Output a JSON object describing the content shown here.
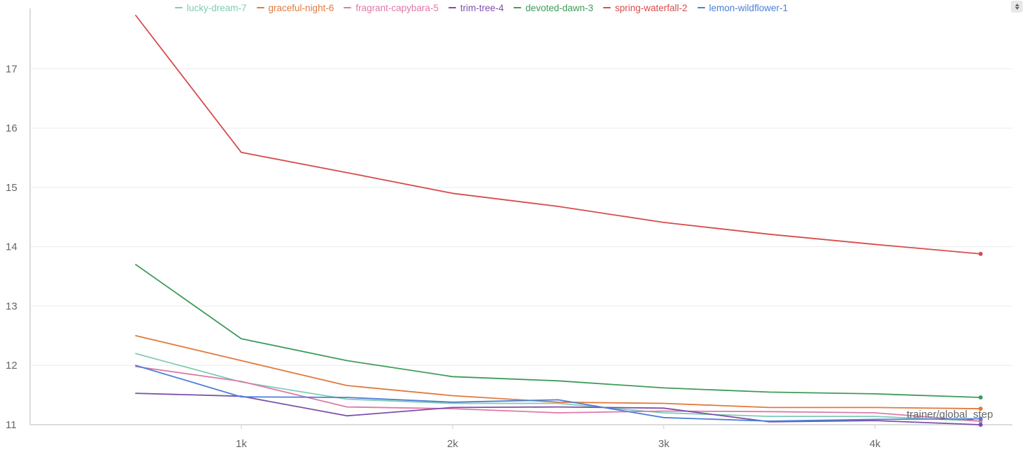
{
  "controls": {
    "scroll_icon": "updown-arrows-icon"
  },
  "chart_data": {
    "type": "line",
    "title": "",
    "xlabel": "trainer/global_step",
    "ylabel": "",
    "xlim": [
      0,
      4650
    ],
    "ylim": [
      11,
      17.9
    ],
    "x_ticks": [
      1000,
      2000,
      3000,
      4000
    ],
    "x_tick_labels": [
      "1k",
      "2k",
      "3k",
      "4k"
    ],
    "y_ticks": [
      11,
      12,
      13,
      14,
      15,
      16,
      17
    ],
    "y_tick_labels": [
      "11",
      "12",
      "13",
      "14",
      "15",
      "16",
      "17"
    ],
    "grid": true,
    "legend_position": "top",
    "series": [
      {
        "name": "lucky-dream-7",
        "color": "#7fccb5",
        "x": [
          500,
          1000,
          1500,
          2000,
          2500,
          3000,
          3500,
          4000,
          4500
        ],
        "y": [
          12.2,
          11.72,
          11.43,
          11.36,
          11.36,
          11.2,
          11.14,
          11.14,
          11.06
        ],
        "end_marker": false
      },
      {
        "name": "graceful-night-6",
        "color": "#e07a3e",
        "x": [
          500,
          1000,
          1500,
          2000,
          2500,
          3000,
          3500,
          4000,
          4500
        ],
        "y": [
          12.5,
          12.08,
          11.66,
          11.49,
          11.38,
          11.36,
          11.29,
          11.29,
          11.27
        ],
        "end_marker": true
      },
      {
        "name": "fragrant-capybara-5",
        "color": "#e079a8",
        "x": [
          500,
          1000,
          1500,
          2000,
          2500,
          3000,
          3500,
          4000,
          4500
        ],
        "y": [
          11.98,
          11.73,
          11.3,
          11.27,
          11.2,
          11.23,
          11.22,
          11.2,
          11.06
        ],
        "end_marker": true
      },
      {
        "name": "trim-tree-4",
        "color": "#7b4fad",
        "x": [
          500,
          1000,
          1500,
          2000,
          2500,
          3000,
          3500,
          4000,
          4500
        ],
        "y": [
          11.53,
          11.48,
          11.15,
          11.29,
          11.3,
          11.28,
          11.05,
          11.07,
          11.0
        ],
        "end_marker": true
      },
      {
        "name": "devoted-dawn-3",
        "color": "#3e9b5a",
        "x": [
          500,
          1000,
          1500,
          2000,
          2500,
          3000,
          3500,
          4000,
          4500
        ],
        "y": [
          13.7,
          12.45,
          12.08,
          11.81,
          11.74,
          11.62,
          11.55,
          11.52,
          11.46
        ],
        "end_marker": true
      },
      {
        "name": "spring-waterfall-2",
        "color": "#d64c4c",
        "x": [
          500,
          1000,
          1500,
          2000,
          2500,
          3000,
          3500,
          4000,
          4500
        ],
        "y": [
          17.9,
          15.59,
          15.25,
          14.9,
          14.68,
          14.41,
          14.21,
          14.04,
          13.88
        ],
        "end_marker": true
      },
      {
        "name": "lemon-wildflower-1",
        "color": "#4d7fd6",
        "x": [
          500,
          1000,
          1500,
          2000,
          2500,
          3000,
          3500,
          4000,
          4500
        ],
        "y": [
          12.0,
          11.47,
          11.46,
          11.38,
          11.42,
          11.12,
          11.06,
          11.09,
          11.1
        ],
        "end_marker": true
      }
    ]
  }
}
